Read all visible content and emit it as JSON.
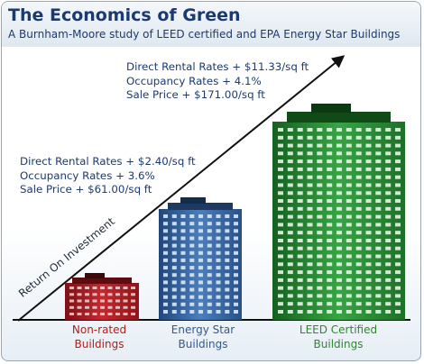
{
  "title": "The Economics of Green",
  "subtitle": "A Burnham-Moore study of LEED certified and EPA Energy Star Buildings",
  "annotations": {
    "high": [
      "Direct Rental Rates + $11.33/sq ft",
      "Occupancy Rates + 4.1%",
      "Sale Price + $171.00/sq ft"
    ],
    "low": [
      "Direct Rental Rates + $2.40/sq ft",
      "Occupancy Rates + 3.6%",
      "Sale Price + $61.00/sq ft"
    ]
  },
  "axis_label": "Return On Investment",
  "buildings": {
    "red": {
      "line1": "Non-rated",
      "line2": "Buildings"
    },
    "blue": {
      "line1": "Energy Star",
      "line2": "Buildings"
    },
    "green": {
      "line1": "LEED Certified",
      "line2": "Buildings"
    }
  },
  "colors": {
    "title": "#1c3a70",
    "red_building": "#b3242a",
    "blue_building": "#3d6ea5",
    "green_building": "#2b8b34"
  }
}
